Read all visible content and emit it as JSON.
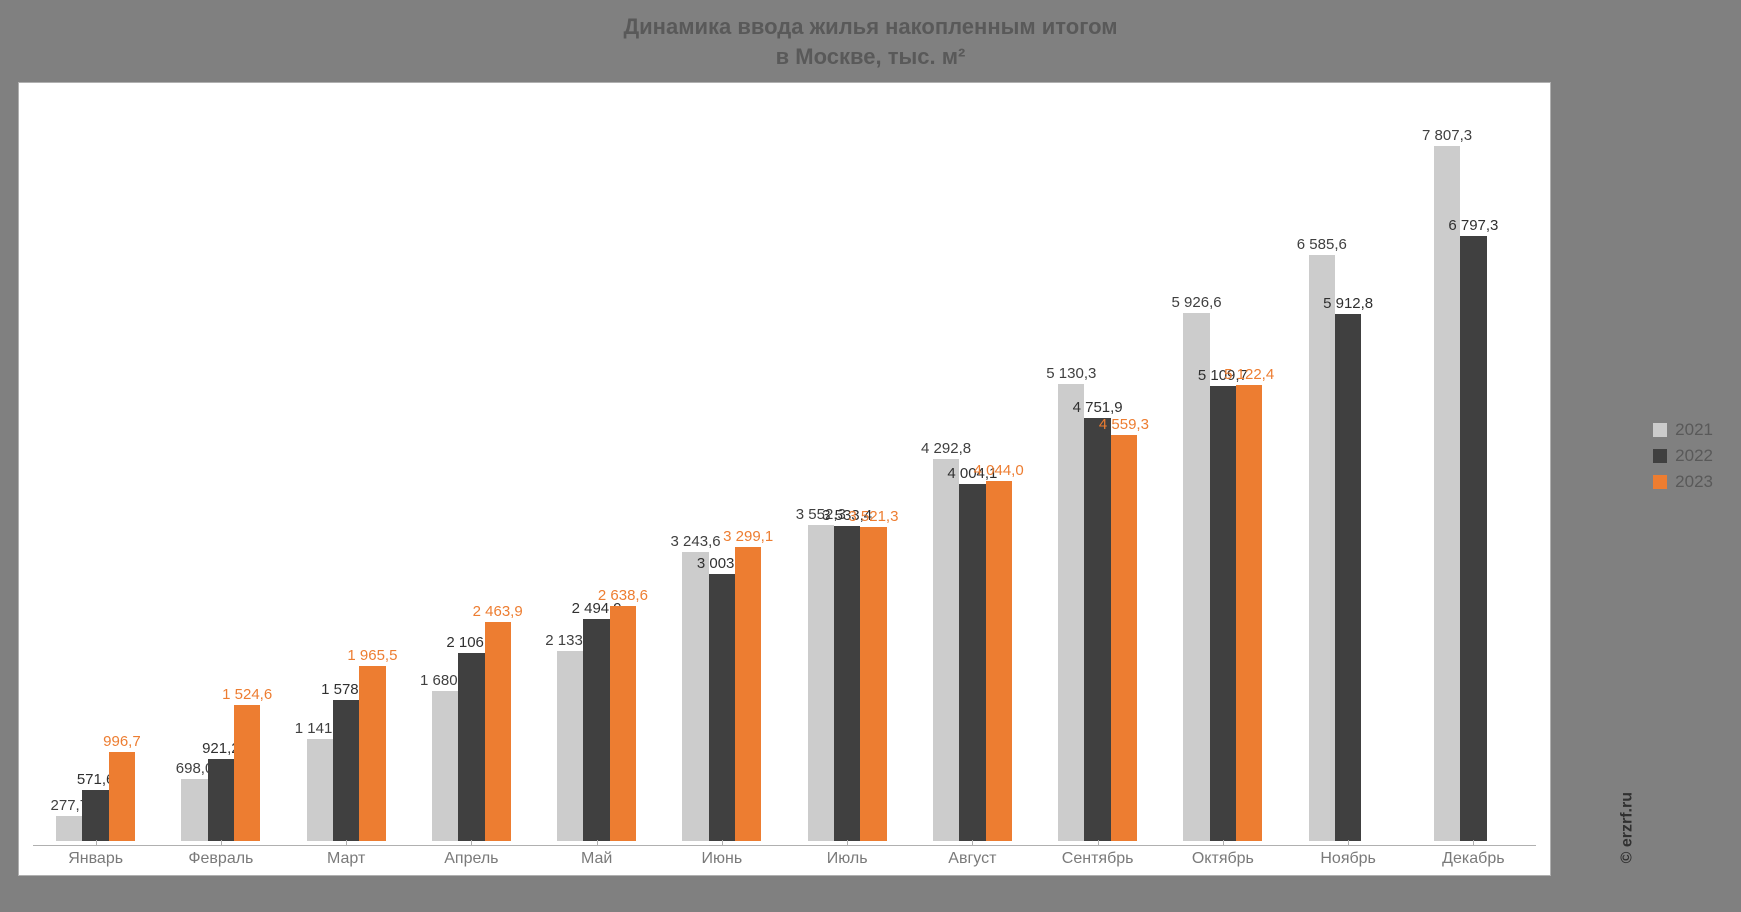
{
  "title_line1": "Динамика ввода жилья накопленным итогом",
  "title_line2": "в Москве, тыс. м²",
  "copyright": "© erzrf.ru",
  "chart": {
    "type": "bar",
    "background_color": "#ffffff",
    "frame_background": "#808080",
    "categories": [
      "Январь",
      "Февраль",
      "Март",
      "Апрель",
      "Май",
      "Июнь",
      "Июль",
      "Август",
      "Сентябрь",
      "Октябрь",
      "Ноябрь",
      "Декабрь"
    ],
    "series": [
      {
        "name": "2021",
        "color": "#cccccc",
        "label_color": "#404040",
        "values": [
          277.7,
          698.0,
          1141.5,
          1680.1,
          2133.5,
          3243.6,
          3552.3,
          4292.8,
          5130.3,
          5926.6,
          6585.6,
          7807.3
        ],
        "labels": [
          "277,7",
          "698,0",
          "1 141,5",
          "1 680,1",
          "2 133,5",
          "3 243,6",
          "3 552,3",
          "4 292,8",
          "5 130,3",
          "5 926,6",
          "6 585,6",
          "7 807,3"
        ]
      },
      {
        "name": "2022",
        "color": "#404040",
        "label_color": "#303030",
        "values": [
          571.6,
          921.2,
          1578.5,
          2106.8,
          2494.9,
          3003.6,
          3533.4,
          4004.1,
          4751.9,
          5109.7,
          5912.8,
          6797.3
        ],
        "labels": [
          "571,6",
          "921,2",
          "1 578,5",
          "2 106,8",
          "2 494,9",
          "3 003,6",
          "3 533,4",
          "4 004,1",
          "4 751,9",
          "5 109,7",
          "5 912,8",
          "6 797,3"
        ]
      },
      {
        "name": "2023",
        "color": "#ed7d31",
        "label_color": "#ed7d31",
        "values": [
          996.7,
          1524.6,
          1965.5,
          2463.9,
          2638.6,
          3299.1,
          3521.3,
          4044.0,
          4559.3,
          5122.4,
          null,
          null
        ],
        "labels": [
          "996,7",
          "1 524,6",
          "1 965,5",
          "2 463,9",
          "2 638,6",
          "3 299,1",
          "3 521,3",
          "4 044,0",
          "4 559,3",
          "5 122,4",
          "",
          ""
        ]
      }
    ],
    "ylim": [
      0,
      8400
    ],
    "bar_width_ratio": 0.21,
    "group_gap_ratio": 0.3,
    "axis_label_color": "#7a7a7a",
    "axis_label_fontsize": 16,
    "value_label_fontsize": 15,
    "title_color": "#595959",
    "title_fontsize": 22
  }
}
